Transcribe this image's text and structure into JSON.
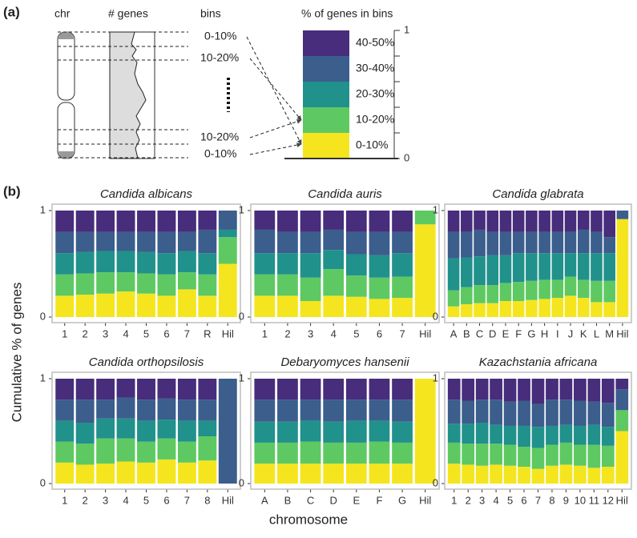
{
  "panel_labels": [
    "(a)",
    "(b)"
  ],
  "schematic": {
    "headers": [
      "chr",
      "# genes",
      "bins"
    ],
    "bin_labels": [
      "0-10%",
      "10-20%",
      "10-20%",
      "0-10%"
    ]
  },
  "legend": {
    "title": "% of genes in bins",
    "labels": [
      "0-10%",
      "10-20%",
      "20-30%",
      "30-40%",
      "40-50%"
    ],
    "colors": [
      "#f5e51f",
      "#5ec962",
      "#21918c",
      "#3b5e8c",
      "#472d7b"
    ],
    "values": [
      0.2,
      0.2,
      0.2,
      0.2,
      0.2
    ],
    "ylim": [
      0,
      1
    ],
    "yticks": [
      0,
      1
    ],
    "minor_yticks": [
      0.2,
      0.4,
      0.6,
      0.8
    ]
  },
  "ylabel": "Cumulative % of genes",
  "xlabel": "chromosome",
  "chart_data": [
    {
      "type": "bar",
      "stacked": true,
      "title": "Candida albicans",
      "ylim": [
        0,
        1
      ],
      "yticks": [
        0,
        1
      ],
      "categories": [
        "1",
        "2",
        "3",
        "4",
        "5",
        "6",
        "7",
        "R",
        "Hil"
      ],
      "series": [
        {
          "values": [
            0.2,
            0.21,
            0.22,
            0.24,
            0.22,
            0.2,
            0.26,
            0.2,
            0.5
          ]
        },
        {
          "values": [
            0.2,
            0.2,
            0.2,
            0.18,
            0.19,
            0.2,
            0.16,
            0.2,
            0.25
          ]
        },
        {
          "values": [
            0.2,
            0.2,
            0.2,
            0.2,
            0.2,
            0.2,
            0.2,
            0.2,
            0.07
          ]
        },
        {
          "values": [
            0.2,
            0.19,
            0.18,
            0.18,
            0.19,
            0.2,
            0.18,
            0.22,
            0.18
          ]
        },
        {
          "values": [
            0.2,
            0.2,
            0.2,
            0.2,
            0.2,
            0.2,
            0.2,
            0.18,
            0
          ]
        }
      ]
    },
    {
      "type": "bar",
      "stacked": true,
      "title": "Candida auris",
      "ylim": [
        0,
        1
      ],
      "yticks": [
        0,
        1
      ],
      "categories": [
        "1",
        "2",
        "3",
        "4",
        "5",
        "6",
        "7",
        "Hil"
      ],
      "series": [
        {
          "values": [
            0.2,
            0.2,
            0.15,
            0.2,
            0.19,
            0.17,
            0.18,
            0.87
          ]
        },
        {
          "values": [
            0.2,
            0.2,
            0.22,
            0.25,
            0.2,
            0.2,
            0.2,
            0.13
          ]
        },
        {
          "values": [
            0.2,
            0.2,
            0.23,
            0.18,
            0.2,
            0.21,
            0.22,
            0
          ]
        },
        {
          "values": [
            0.22,
            0.2,
            0.2,
            0.19,
            0.21,
            0.22,
            0.2,
            0
          ]
        },
        {
          "values": [
            0.18,
            0.2,
            0.2,
            0.18,
            0.2,
            0.2,
            0.2,
            0
          ]
        }
      ]
    },
    {
      "type": "bar",
      "stacked": true,
      "title": "Candida glabrata",
      "ylim": [
        0,
        1
      ],
      "yticks": [
        0,
        1
      ],
      "categories": [
        "A",
        "B",
        "C",
        "D",
        "E",
        "F",
        "G",
        "H",
        "I",
        "J",
        "K",
        "L",
        "M",
        "Hil"
      ],
      "series": [
        {
          "values": [
            0.1,
            0.12,
            0.13,
            0.13,
            0.15,
            0.15,
            0.16,
            0.17,
            0.18,
            0.2,
            0.18,
            0.14,
            0.14,
            0.92
          ]
        },
        {
          "values": [
            0.15,
            0.16,
            0.17,
            0.17,
            0.17,
            0.18,
            0.18,
            0.18,
            0.17,
            0.18,
            0.17,
            0.2,
            0.2,
            0
          ]
        },
        {
          "values": [
            0.3,
            0.28,
            0.27,
            0.28,
            0.26,
            0.27,
            0.26,
            0.25,
            0.25,
            0.22,
            0.25,
            0.26,
            0.26,
            0
          ]
        },
        {
          "values": [
            0.25,
            0.24,
            0.25,
            0.22,
            0.22,
            0.2,
            0.2,
            0.2,
            0.2,
            0.2,
            0.22,
            0.2,
            0.15,
            0.08
          ]
        },
        {
          "values": [
            0.2,
            0.2,
            0.18,
            0.2,
            0.2,
            0.2,
            0.2,
            0.2,
            0.2,
            0.2,
            0.18,
            0.2,
            0.25,
            0
          ]
        }
      ]
    },
    {
      "type": "bar",
      "stacked": true,
      "title": "Candida orthopsilosis",
      "ylim": [
        0,
        1
      ],
      "yticks": [
        0,
        1
      ],
      "categories": [
        "1",
        "2",
        "3",
        "4",
        "5",
        "6",
        "7",
        "8",
        "Hil"
      ],
      "series": [
        {
          "values": [
            0.2,
            0.18,
            0.19,
            0.21,
            0.2,
            0.23,
            0.2,
            0.22,
            0
          ]
        },
        {
          "values": [
            0.2,
            0.2,
            0.24,
            0.22,
            0.2,
            0.2,
            0.2,
            0.23,
            0
          ]
        },
        {
          "values": [
            0.2,
            0.2,
            0.19,
            0.19,
            0.2,
            0.18,
            0.2,
            0.15,
            0
          ]
        },
        {
          "values": [
            0.2,
            0.22,
            0.18,
            0.2,
            0.2,
            0.2,
            0.2,
            0.2,
            1
          ]
        },
        {
          "values": [
            0.2,
            0.2,
            0.2,
            0.18,
            0.2,
            0.19,
            0.2,
            0.2,
            0
          ]
        }
      ]
    },
    {
      "type": "bar",
      "stacked": true,
      "title": "Debaryomyces hansenii",
      "ylim": [
        0,
        1
      ],
      "yticks": [
        0,
        1
      ],
      "categories": [
        "A",
        "B",
        "C",
        "D",
        "E",
        "F",
        "G",
        "Hil"
      ],
      "series": [
        {
          "values": [
            0.19,
            0.19,
            0.19,
            0.19,
            0.19,
            0.19,
            0.19,
            1
          ]
        },
        {
          "values": [
            0.2,
            0.2,
            0.21,
            0.2,
            0.2,
            0.21,
            0.2,
            0
          ]
        },
        {
          "values": [
            0.2,
            0.2,
            0.2,
            0.2,
            0.21,
            0.2,
            0.2,
            0
          ]
        },
        {
          "values": [
            0.21,
            0.21,
            0.2,
            0.21,
            0.2,
            0.2,
            0.21,
            0
          ]
        },
        {
          "values": [
            0.2,
            0.2,
            0.2,
            0.2,
            0.2,
            0.2,
            0.2,
            0
          ]
        }
      ]
    },
    {
      "type": "bar",
      "stacked": true,
      "title": "Kazachstania africana",
      "ylim": [
        0,
        1
      ],
      "yticks": [
        0,
        1
      ],
      "categories": [
        "1",
        "2",
        "3",
        "4",
        "5",
        "6",
        "7",
        "8",
        "9",
        "10",
        "11",
        "12",
        "Hil"
      ],
      "series": [
        {
          "values": [
            0.19,
            0.18,
            0.17,
            0.18,
            0.17,
            0.16,
            0.14,
            0.17,
            0.18,
            0.17,
            0.15,
            0.16,
            0.5
          ]
        },
        {
          "values": [
            0.2,
            0.2,
            0.21,
            0.2,
            0.2,
            0.19,
            0.2,
            0.2,
            0.21,
            0.2,
            0.22,
            0.2,
            0.2
          ]
        },
        {
          "values": [
            0.18,
            0.19,
            0.2,
            0.18,
            0.18,
            0.2,
            0.2,
            0.18,
            0.17,
            0.18,
            0.19,
            0.18,
            0
          ]
        },
        {
          "values": [
            0.23,
            0.22,
            0.22,
            0.24,
            0.23,
            0.24,
            0.22,
            0.25,
            0.24,
            0.24,
            0.22,
            0.23,
            0.2
          ]
        },
        {
          "values": [
            0.2,
            0.21,
            0.2,
            0.2,
            0.22,
            0.21,
            0.24,
            0.2,
            0.2,
            0.21,
            0.22,
            0.23,
            0.1
          ]
        }
      ]
    }
  ]
}
